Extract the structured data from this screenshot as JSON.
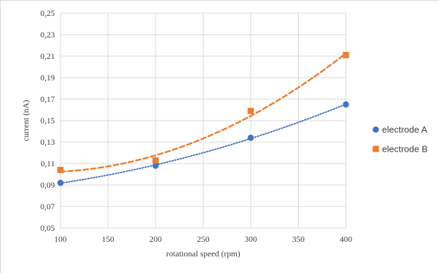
{
  "chart_data": {
    "type": "scatter",
    "xlabel": "rotational speed (rpm)",
    "ylabel": "current (nA)",
    "xlim": [
      100,
      400
    ],
    "ylim": [
      0.05,
      0.25
    ],
    "x_ticks": [
      100,
      150,
      200,
      250,
      300,
      350,
      400
    ],
    "x_tick_labels": [
      "100",
      "150",
      "200",
      "250",
      "300",
      "350",
      "400"
    ],
    "y_ticks": [
      0.05,
      0.07,
      0.09,
      0.11,
      0.13,
      0.15,
      0.17,
      0.19,
      0.21,
      0.23,
      0.25
    ],
    "y_tick_labels": [
      "0,05",
      "0,07",
      "0,09",
      "0,11",
      "0,13",
      "0,15",
      "0,17",
      "0,19",
      "0,21",
      "0,23",
      "0,25"
    ],
    "grid": true,
    "legend_position": "right",
    "series": [
      {
        "name": "electrode A",
        "marker": "circle",
        "color": "#4472c4",
        "trendline": "dotted",
        "x": [
          100,
          200,
          300,
          400
        ],
        "y": [
          0.092,
          0.108,
          0.134,
          0.165
        ]
      },
      {
        "name": "electrode B",
        "marker": "square",
        "color": "#ed7d31",
        "trendline": "dashed",
        "x": [
          100,
          200,
          300,
          400
        ],
        "y": [
          0.104,
          0.113,
          0.159,
          0.211
        ]
      }
    ]
  }
}
